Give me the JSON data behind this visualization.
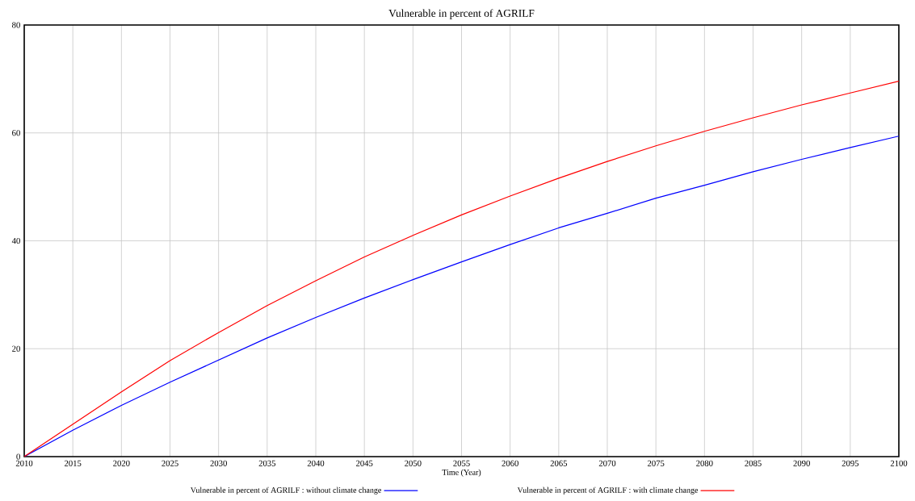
{
  "chart_data": {
    "type": "line",
    "title": "Vulnerable in percent of AGRILF",
    "xlabel": "Time (Year)",
    "x": [
      2010,
      2015,
      2020,
      2025,
      2030,
      2035,
      2040,
      2045,
      2050,
      2055,
      2060,
      2065,
      2070,
      2075,
      2080,
      2085,
      2090,
      2095,
      2100
    ],
    "series": [
      {
        "name": "Vulnerable in percent of AGRILF : without climate change",
        "color": "#0000ff",
        "values": [
          0,
          4.9,
          9.5,
          13.8,
          17.9,
          22,
          25.8,
          29.4,
          32.8,
          36.1,
          39.3,
          42.4,
          45.1,
          47.9,
          50.3,
          52.8,
          55.1,
          57.3,
          59.4
        ]
      },
      {
        "name": "Vulnerable in percent of AGRILF : with climate change",
        "color": "#ff0000",
        "values": [
          0,
          6,
          12,
          17.8,
          23,
          28,
          32.6,
          37,
          41,
          44.8,
          48.3,
          51.6,
          54.7,
          57.6,
          60.3,
          62.8,
          65.2,
          67.4,
          69.6
        ]
      }
    ],
    "xlim": [
      2010,
      2100
    ],
    "xticks": [
      2010,
      2015,
      2020,
      2025,
      2030,
      2035,
      2040,
      2045,
      2050,
      2055,
      2060,
      2065,
      2070,
      2075,
      2080,
      2085,
      2090,
      2095,
      2100
    ],
    "ylim": [
      0,
      80
    ],
    "yticks": [
      0,
      20,
      40,
      60,
      80
    ],
    "grid": true,
    "legend": "bottom",
    "marker": "none",
    "line_style": "solid"
  }
}
